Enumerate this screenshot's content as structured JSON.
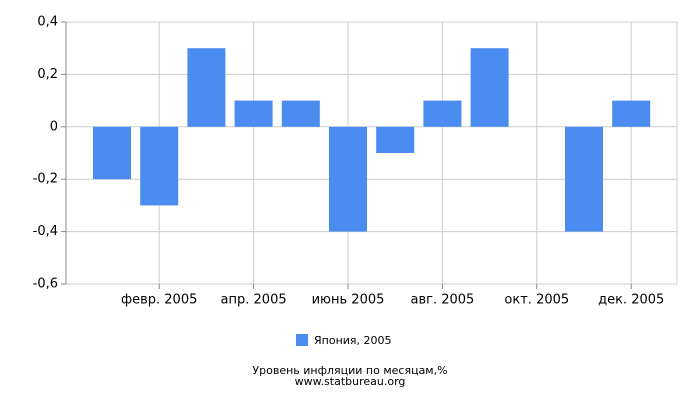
{
  "chart_data": {
    "type": "bar",
    "categories": [
      null,
      "февр. 2005",
      null,
      "апр. 2005",
      null,
      "июнь 2005",
      null,
      "авг. 2005",
      null,
      "окт. 2005",
      null,
      "дек. 2005"
    ],
    "series": [
      {
        "name": "Япония, 2005",
        "color": "#4a8cf0",
        "values": [
          -0.2,
          -0.3,
          0.3,
          0.1,
          0.1,
          -0.4,
          -0.1,
          0.1,
          0.3,
          0,
          -0.4,
          0.1
        ]
      }
    ],
    "ylim": [
      -0.6,
      0.4
    ],
    "yticks": [
      {
        "value": 0.4,
        "label": "0,4"
      },
      {
        "value": 0.2,
        "label": "0,2"
      },
      0,
      {
        "value": -0.2,
        "label": "-0,2"
      },
      {
        "value": -0.4,
        "label": "-0,4"
      },
      {
        "value": -0.6,
        "label": "-0,6"
      }
    ],
    "grid": true,
    "footer": [
      "Уровень инфляции по месяцам,%",
      "www.statbureau.org"
    ]
  }
}
